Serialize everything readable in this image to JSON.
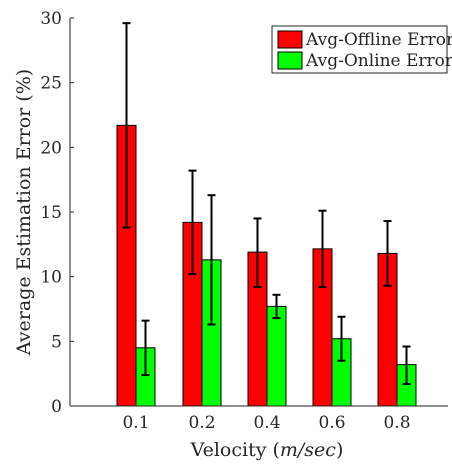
{
  "chart_data": {
    "type": "bar",
    "categories": [
      "0.1",
      "0.2",
      "0.4",
      "0.6",
      "0.8"
    ],
    "series": [
      {
        "name": "Avg-Offline Error",
        "color": "#ff0000",
        "values": [
          21.7,
          14.2,
          11.9,
          12.15,
          11.8
        ],
        "error": [
          [
            13.8,
            29.6
          ],
          [
            10.2,
            18.2
          ],
          [
            9.2,
            14.5
          ],
          [
            9.2,
            15.1
          ],
          [
            9.3,
            14.3
          ]
        ]
      },
      {
        "name": "Avg-Online Error",
        "color": "#00ff00",
        "values": [
          4.5,
          11.3,
          7.7,
          5.2,
          3.2
        ],
        "error": [
          [
            2.4,
            6.6
          ],
          [
            6.3,
            16.3
          ],
          [
            6.8,
            8.6
          ],
          [
            3.5,
            6.9
          ],
          [
            1.7,
            4.6
          ]
        ]
      }
    ],
    "xlabel": {
      "prefix": "Velocity (",
      "unit": "m/sec",
      "suffix": ")"
    },
    "ylabel": "Average Estimation Error (%)",
    "ylim": [
      0,
      30
    ],
    "yticks": [
      "0",
      "5",
      "10",
      "15",
      "20",
      "25",
      "30"
    ],
    "grid": false,
    "legend": "top-right"
  }
}
